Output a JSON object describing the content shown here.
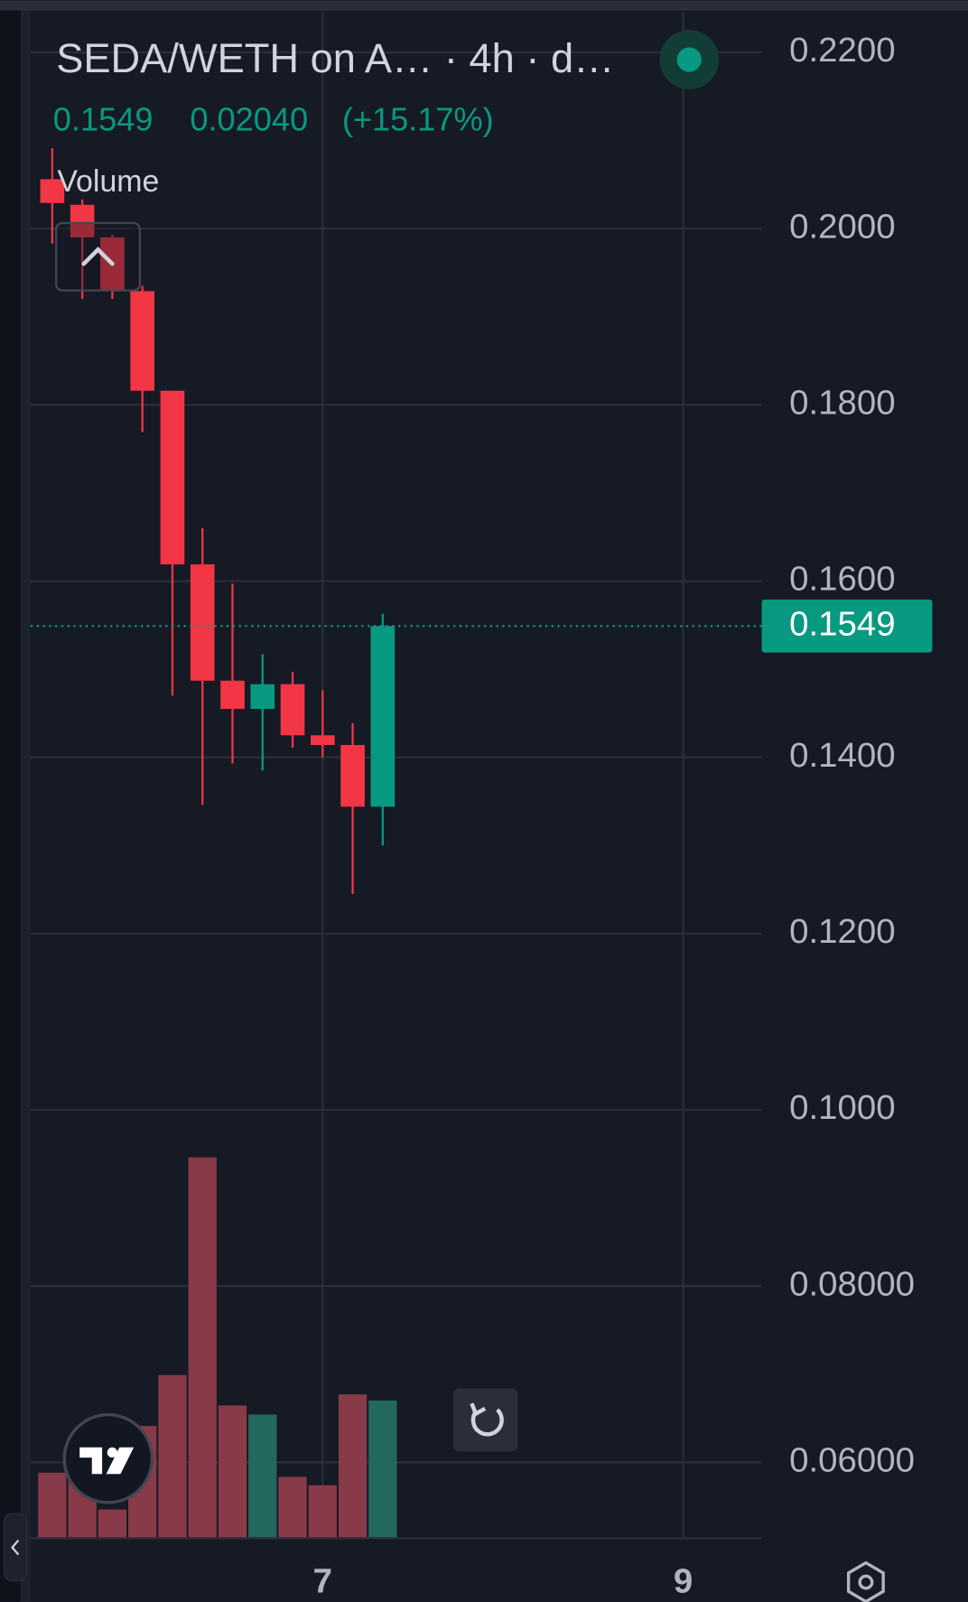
{
  "chart_data": {
    "type": "candlestick",
    "title": "SEDA/WETH on A… · 4h · d…",
    "legend_values": [
      "0.1549",
      "0.02040",
      "(+15.17%)"
    ],
    "volume_label": "Volume",
    "x": [
      5.5,
      5.6667,
      5.8333,
      6,
      6.1667,
      6.3333,
      6.5,
      6.6667,
      6.8333,
      7,
      7.1667,
      7.3333
    ],
    "series": [
      {
        "open": [
          0.2056,
          0.2027,
          0.199,
          0.1929,
          0.1816,
          0.1619,
          0.1487,
          0.1455,
          0.1483,
          0.1425,
          0.1414,
          0.1344
        ],
        "high": [
          0.2091,
          0.2033,
          0.1993,
          0.1935,
          0.1816,
          0.166,
          0.1597,
          0.1517,
          0.1497,
          0.1476,
          0.1439,
          0.1563
        ],
        "low": [
          0.1983,
          0.192,
          0.192,
          0.1769,
          0.147,
          0.1346,
          0.1393,
          0.1385,
          0.1411,
          0.14,
          0.1245,
          0.13
        ],
        "close": [
          0.2029,
          0.199,
          0.1931,
          0.1816,
          0.1619,
          0.1487,
          0.1455,
          0.1483,
          0.1425,
          0.1414,
          0.1344,
          0.1549
        ],
        "volume": [
          17,
          15.6,
          7.3,
          29.3,
          42.7,
          100,
          34.7,
          32.3,
          15.9,
          13.7,
          37.6,
          36
        ]
      }
    ],
    "up_color": "#089981",
    "down_color": "#f23645",
    "volume_up_color": "#22685d",
    "volume_down_color": "#883a48",
    "last_price": 0.1549,
    "xlim": [
      5.38,
      9.436
    ],
    "xticks": [
      7,
      9
    ],
    "ylim": [
      0.0515,
      0.2245
    ],
    "yticks": [
      {
        "value": 0.22,
        "label": "0.2200"
      },
      {
        "value": 0.2,
        "label": "0.2000"
      },
      {
        "value": 0.18,
        "label": "0.1800"
      },
      {
        "value": 0.16,
        "label": "0.1600"
      },
      {
        "value": 0.14,
        "label": "0.1400"
      },
      {
        "value": 0.12,
        "label": "0.1200"
      },
      {
        "value": 0.1,
        "label": "0.1000"
      },
      {
        "value": 0.08,
        "label": "0.08000"
      },
      {
        "value": 0.06,
        "label": "0.06000"
      }
    ],
    "grid": true
  }
}
